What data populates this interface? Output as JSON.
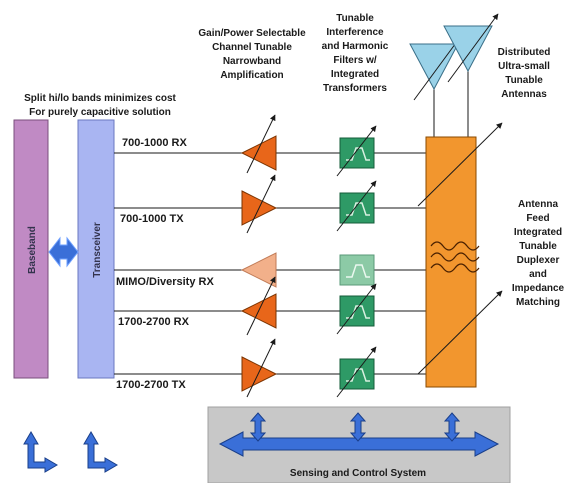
{
  "notes": {
    "split_bands": [
      "Split hi/lo bands minimizes cost",
      "For purely capacitive solution"
    ],
    "gain": [
      "Gain/Power Selectable",
      "Channel Tunable",
      "Narrowband",
      "Amplification"
    ],
    "filters": [
      "Tunable",
      "Interference",
      "and Harmonic",
      "Filters w/",
      "Integrated",
      "Transformers"
    ],
    "antennas": [
      "Distributed",
      "Ultra-small",
      "Tunable",
      "Antennas"
    ],
    "feed": [
      "Antenna",
      "Feed",
      "Integrated",
      "Tunable",
      "Duplexer",
      "and",
      "Impedance",
      "Matching"
    ]
  },
  "blocks": {
    "baseband": "Baseband",
    "transceiver": "Transceiver",
    "sensing": "Sensing and Control System"
  },
  "paths": [
    {
      "label": "700-1000 RX",
      "faded": false
    },
    {
      "label": "700-1000 TX",
      "faded": false
    },
    {
      "label": "MIMO/Diversity RX",
      "faded": true
    },
    {
      "label": "1700-2700 RX",
      "faded": false
    },
    {
      "label": "1700-2700 TX",
      "faded": false
    }
  ],
  "colors": {
    "baseband": "#c08ac4",
    "transceiver": "#a9b5f2",
    "amp": "#e8661a",
    "amp_faded": "#f2b08a",
    "filter": "#2e9a66",
    "filter_faded": "#8ccaa6",
    "duplexer": "#f2962e",
    "antenna": "#9ad2e8",
    "sensing_box": "#c8c8c8",
    "arrow_blue": "#3a6fd8"
  }
}
